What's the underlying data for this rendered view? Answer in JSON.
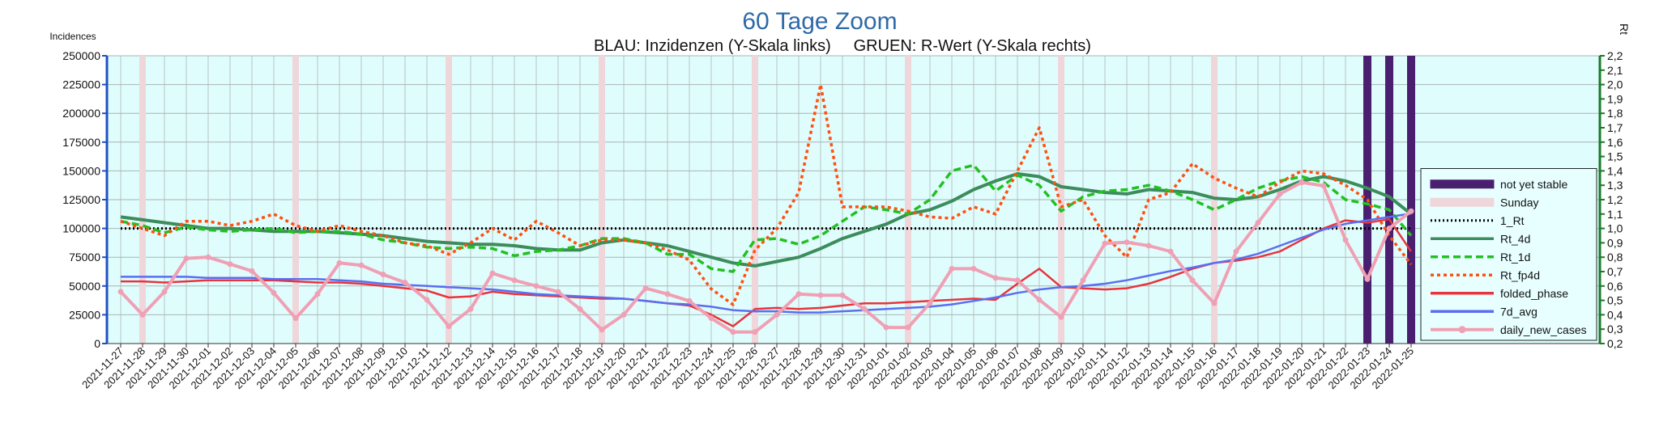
{
  "chart_data": {
    "type": "line",
    "title": "60 Tage Zoom",
    "subtitle": "BLAU: Inzidenzen (Y-Skala links)     GRUEN: R-Wert (Y-Skala rechts)",
    "y_axis_label": "Incidences",
    "y2_axis_label": "Rt",
    "categories": [
      "2021-11-27",
      "2021-11-28",
      "2021-11-29",
      "2021-11-30",
      "2021-12-01",
      "2021-12-02",
      "2021-12-03",
      "2021-12-04",
      "2021-12-05",
      "2021-12-06",
      "2021-12-07",
      "2021-12-08",
      "2021-12-09",
      "2021-12-10",
      "2021-12-11",
      "2021-12-12",
      "2021-12-13",
      "2021-12-14",
      "2021-12-15",
      "2021-12-16",
      "2021-12-17",
      "2021-12-18",
      "2021-12-19",
      "2021-12-20",
      "2021-12-21",
      "2021-12-22",
      "2021-12-23",
      "2021-12-24",
      "2021-12-25",
      "2021-12-26",
      "2021-12-27",
      "2021-12-28",
      "2021-12-29",
      "2021-12-30",
      "2021-12-31",
      "2022-01-01",
      "2022-01-02",
      "2022-01-03",
      "2022-01-04",
      "2022-01-05",
      "2022-01-06",
      "2022-01-07",
      "2022-01-08",
      "2022-01-09",
      "2022-01-10",
      "2022-01-11",
      "2022-01-12",
      "2022-01-13",
      "2022-01-14",
      "2022-01-15",
      "2022-01-16",
      "2022-01-17",
      "2022-01-18",
      "2022-01-19",
      "2022-01-20",
      "2022-01-21",
      "2022-01-22",
      "2022-01-23",
      "2022-01-24",
      "2022-01-25"
    ],
    "ylim": [
      0,
      250000
    ],
    "yticks": [
      0,
      25000,
      50000,
      75000,
      100000,
      125000,
      150000,
      175000,
      200000,
      225000,
      250000
    ],
    "y2lim": [
      0.2,
      2.2
    ],
    "y2ticks": [
      {
        "value": 0.2,
        "label": "0,2"
      },
      {
        "value": 0.3,
        "label": "0,3"
      },
      {
        "value": 0.4,
        "label": "0,4"
      },
      {
        "value": 0.5,
        "label": "0,5"
      },
      {
        "value": 0.6,
        "label": "0,6"
      },
      {
        "value": 0.7,
        "label": "0,7"
      },
      {
        "value": 0.8,
        "label": "0,8"
      },
      {
        "value": 0.9,
        "label": "0,9"
      },
      {
        "value": 1.0,
        "label": "1,0"
      },
      {
        "value": 1.1,
        "label": "1,1"
      },
      {
        "value": 1.2,
        "label": "1,2"
      },
      {
        "value": 1.3,
        "label": "1,3"
      },
      {
        "value": 1.4,
        "label": "1,4"
      },
      {
        "value": 1.5,
        "label": "1,5"
      },
      {
        "value": 1.6,
        "label": "1,6"
      },
      {
        "value": 1.7,
        "label": "1,7"
      },
      {
        "value": 1.8,
        "label": "1,8"
      },
      {
        "value": 1.9,
        "label": "1,9"
      },
      {
        "value": 2.0,
        "label": "2,0"
      },
      {
        "value": 2.1,
        "label": "2,1"
      },
      {
        "value": 2.2,
        "label": "2,2"
      }
    ],
    "grid": true,
    "legend": "right",
    "bands": [
      {
        "name": "not yet stable",
        "color": "#4b1f6f",
        "dates": [
          "2022-01-23",
          "2022-01-24",
          "2022-01-25"
        ]
      },
      {
        "name": "Sunday",
        "color": "#efd6da",
        "dates": [
          "2021-11-28",
          "2021-12-05",
          "2021-12-12",
          "2021-12-19",
          "2021-12-26",
          "2022-01-02",
          "2022-01-09",
          "2022-01-16"
        ]
      }
    ],
    "reference_lines": [
      {
        "name": "1_Rt",
        "color": "#000000",
        "value": 1.0,
        "axis": "y2",
        "style": "dotted"
      }
    ],
    "series": [
      {
        "name": "Rt_4d",
        "color": "#3c8c5c",
        "axis": "y2",
        "style": "solid",
        "values": [
          1.08,
          1.06,
          1.04,
          1.02,
          1.0,
          1.0,
          0.99,
          0.98,
          0.98,
          0.98,
          0.97,
          0.96,
          0.95,
          0.93,
          0.91,
          0.9,
          0.89,
          0.89,
          0.88,
          0.86,
          0.85,
          0.85,
          0.9,
          0.92,
          0.9,
          0.88,
          0.84,
          0.8,
          0.76,
          0.74,
          0.77,
          0.8,
          0.86,
          0.93,
          0.98,
          1.03,
          1.1,
          1.13,
          1.19,
          1.27,
          1.33,
          1.38,
          1.36,
          1.29,
          1.27,
          1.25,
          1.24,
          1.27,
          1.26,
          1.25,
          1.21,
          1.2,
          1.22,
          1.27,
          1.33,
          1.36,
          1.33,
          1.28,
          1.22,
          1.1
        ]
      },
      {
        "name": "Rt_1d",
        "color": "#22c022",
        "axis": "y2",
        "style": "dashed",
        "values": [
          1.05,
          1.02,
          0.97,
          1.01,
          0.99,
          0.98,
          0.99,
          1.0,
          0.97,
          0.98,
          0.98,
          0.96,
          0.92,
          0.9,
          0.87,
          0.86,
          0.87,
          0.86,
          0.81,
          0.84,
          0.85,
          0.88,
          0.93,
          0.93,
          0.9,
          0.82,
          0.82,
          0.72,
          0.7,
          0.92,
          0.93,
          0.89,
          0.95,
          1.05,
          1.15,
          1.13,
          1.1,
          1.2,
          1.4,
          1.44,
          1.26,
          1.37,
          1.3,
          1.12,
          1.22,
          1.26,
          1.27,
          1.3,
          1.26,
          1.2,
          1.13,
          1.2,
          1.28,
          1.33,
          1.36,
          1.32,
          1.2,
          1.17,
          1.13,
          0.95
        ]
      },
      {
        "name": "Rt_fp4d",
        "color": "#ff5010",
        "axis": "y2",
        "style": "dotted",
        "values": [
          1.05,
          1.0,
          0.95,
          1.05,
          1.05,
          1.02,
          1.05,
          1.1,
          1.02,
          0.98,
          1.02,
          0.98,
          0.95,
          0.9,
          0.88,
          0.82,
          0.9,
          1.0,
          0.92,
          1.05,
          0.97,
          0.88,
          0.92,
          0.92,
          0.9,
          0.85,
          0.78,
          0.58,
          0.47,
          0.85,
          1.0,
          1.25,
          2.0,
          1.15,
          1.15,
          1.15,
          1.12,
          1.08,
          1.07,
          1.15,
          1.1,
          1.4,
          1.7,
          1.15,
          1.2,
          0.95,
          0.8,
          1.2,
          1.25,
          1.45,
          1.35,
          1.28,
          1.22,
          1.32,
          1.4,
          1.38,
          1.3,
          1.2,
          0.95,
          0.75
        ]
      },
      {
        "name": "folded_phase",
        "color": "#e8343c",
        "axis": "y",
        "style": "solid",
        "values": [
          54000,
          54000,
          53000,
          54000,
          55000,
          55000,
          55000,
          55000,
          54000,
          53000,
          53000,
          52000,
          50000,
          48000,
          46000,
          40000,
          41000,
          45000,
          43000,
          42000,
          41000,
          40000,
          39000,
          39000,
          37000,
          35000,
          33000,
          25000,
          15000,
          30000,
          31000,
          30000,
          31000,
          33000,
          35000,
          35000,
          36000,
          37000,
          38000,
          39000,
          38000,
          52000,
          65000,
          49000,
          48000,
          47000,
          48000,
          52000,
          58000,
          65000,
          70000,
          72000,
          75000,
          80000,
          90000,
          100000,
          107000,
          105000,
          108000,
          80000
        ]
      },
      {
        "name": "7d_avg",
        "color": "#5a6ef0",
        "axis": "y",
        "style": "solid",
        "values": [
          58000,
          58000,
          58000,
          58000,
          57000,
          57000,
          57000,
          56000,
          56000,
          56000,
          55000,
          54000,
          52000,
          51000,
          50000,
          49000,
          48000,
          47000,
          45000,
          43000,
          42000,
          41000,
          40000,
          39000,
          37000,
          35000,
          34000,
          32000,
          29000,
          28000,
          28000,
          27000,
          27000,
          28000,
          29000,
          30000,
          31000,
          32000,
          34000,
          37000,
          40000,
          44000,
          47000,
          49000,
          50000,
          52000,
          55000,
          59000,
          63000,
          66000,
          70000,
          73000,
          78000,
          85000,
          92000,
          99000,
          104000,
          107000,
          110000,
          113000
        ]
      },
      {
        "name": "daily_new_cases",
        "color": "#f0a0b4",
        "axis": "y",
        "style": "marker",
        "values": [
          45000,
          25000,
          45000,
          74000,
          75000,
          69000,
          63000,
          44000,
          22000,
          43000,
          70000,
          68000,
          60000,
          53000,
          38000,
          15000,
          30000,
          61000,
          55000,
          50000,
          45000,
          30000,
          12000,
          25000,
          48000,
          43000,
          37000,
          22000,
          10000,
          10000,
          25000,
          43000,
          42000,
          42000,
          30000,
          14000,
          14000,
          35000,
          65000,
          65000,
          57000,
          55000,
          38000,
          23000,
          55000,
          87000,
          88000,
          85000,
          80000,
          55000,
          35000,
          80000,
          105000,
          130000,
          140000,
          137000,
          90000,
          56000,
          100000,
          115000
        ]
      }
    ]
  }
}
